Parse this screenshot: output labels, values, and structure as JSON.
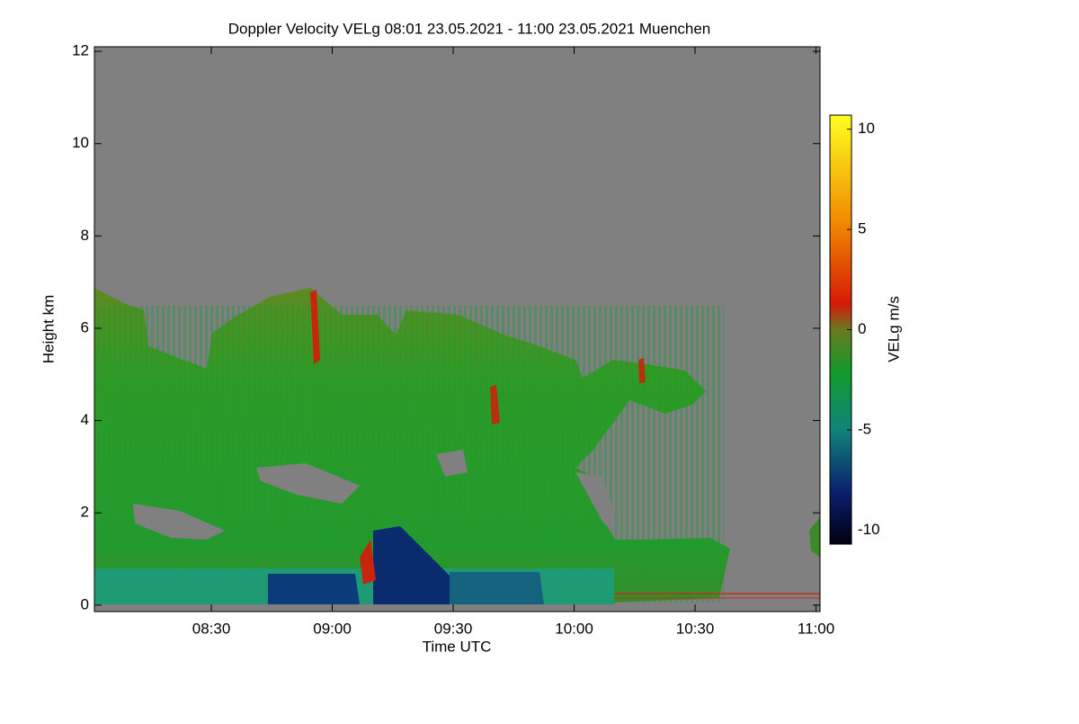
{
  "chart_data": {
    "type": "heatmap",
    "title": "Doppler Velocity VELg   08:01 23.05.2021 - 11:00 23.05.2021 Muenchen",
    "x_label": "Time UTC",
    "y_label": "Height km",
    "xlim": [
      "08:01",
      "11:01"
    ],
    "xticks": [
      "08:30",
      "09:00",
      "09:30",
      "10:00",
      "10:30",
      "11:00"
    ],
    "ylim": [
      -0.14,
      12.1
    ],
    "yticks": [
      0,
      2,
      4,
      6,
      8,
      10,
      12
    ],
    "colorbar": {
      "label": "VELg m/s",
      "lim": [
        -10.7,
        10.7
      ],
      "ticks": [
        -10,
        -5,
        0,
        5,
        10
      ]
    }
  }
}
